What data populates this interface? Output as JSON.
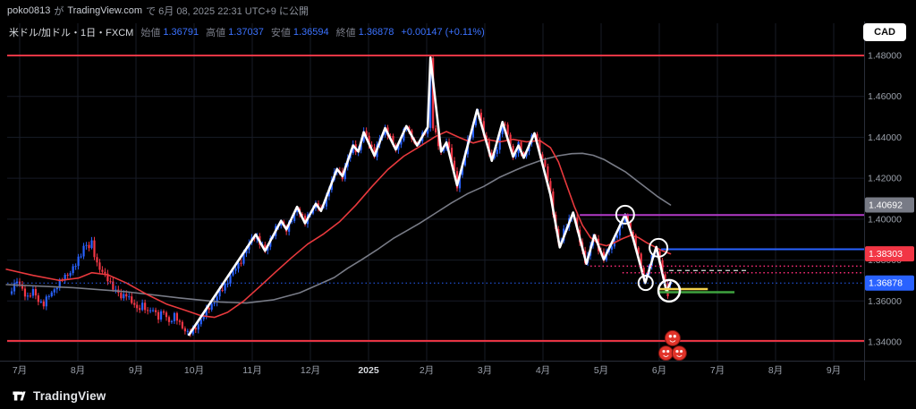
{
  "page": {
    "top_bar": {
      "user": "poko0813",
      "joiner": "が",
      "site": "TradingView.com",
      "rest": "で 6月 08, 2025 22:31 UTC+9 に公開"
    },
    "footer": {
      "logo_text": "TradingView"
    }
  },
  "chart": {
    "symbol_title": "米ドル/加ドル・1日・FXCM",
    "legend": {
      "open_label": "始値",
      "open_value": "1.36791",
      "high_label": "高値",
      "high_value": "1.37037",
      "low_label": "安値",
      "low_value": "1.36594",
      "close_label": "終値",
      "close_value": "1.36878",
      "change_value": "+0.00147 (+0.11%)"
    },
    "currency_button": "CAD",
    "colors": {
      "up": "#2962ff",
      "down": "#f23645",
      "ma_fast": "#e8393d",
      "ma_slow": "#787b86",
      "trend": "#ffffff",
      "grid": "#171b26",
      "axis_text": "#9aa0aa",
      "border": "#2a2e39"
    }
  },
  "chart_data": {
    "type": "candlestick",
    "title": "USD/CAD daily candlestick chart with moving averages and drawn levels",
    "symbol": "USD/CAD",
    "timeframe": "1D",
    "exchange": "FXCM",
    "x_axis": {
      "labels": [
        "7月",
        "8月",
        "9月",
        "10月",
        "11月",
        "12月",
        "2025",
        "2月",
        "3月",
        "4月",
        "5月",
        "6月",
        "7月",
        "8月",
        "9月"
      ]
    },
    "y_axis": {
      "ticks": [
        1.34,
        1.36,
        1.38,
        1.4,
        1.42,
        1.44,
        1.46,
        1.48
      ],
      "tick_labels": [
        "1.34000",
        "1.36000",
        "1.38000",
        "1.40000",
        "1.42000",
        "1.44000",
        "1.46000",
        "1.48000"
      ],
      "range": [
        1.331,
        1.487
      ]
    },
    "last_candle": {
      "open": 1.36791,
      "high": 1.37037,
      "low": 1.36594,
      "close": 1.36878
    },
    "close_path": [
      [
        -3,
        1.3665
      ],
      [
        -1,
        1.3695
      ],
      [
        1,
        1.3655
      ],
      [
        3,
        1.362
      ],
      [
        5,
        1.3645
      ],
      [
        7,
        1.3605
      ],
      [
        9,
        1.3585
      ],
      [
        11,
        1.3625
      ],
      [
        13,
        1.366
      ],
      [
        15,
        1.369
      ],
      [
        17,
        1.372
      ],
      [
        19,
        1.3745
      ],
      [
        21,
        1.3775
      ],
      [
        23,
        1.383
      ],
      [
        24.5,
        1.3895
      ],
      [
        25.5,
        1.385
      ],
      [
        27,
        1.388
      ],
      [
        28.5,
        1.38
      ],
      [
        30,
        1.376
      ],
      [
        32,
        1.372
      ],
      [
        34,
        1.369
      ],
      [
        36,
        1.365
      ],
      [
        38,
        1.3615
      ],
      [
        40,
        1.364
      ],
      [
        42,
        1.359
      ],
      [
        44,
        1.356
      ],
      [
        46,
        1.3585
      ],
      [
        48,
        1.354
      ],
      [
        50,
        1.3565
      ],
      [
        52,
        1.352
      ],
      [
        54,
        1.3545
      ],
      [
        56,
        1.35
      ],
      [
        58,
        1.3525
      ],
      [
        60,
        1.349
      ],
      [
        62,
        1.346
      ],
      [
        63.5,
        1.3435
      ],
      [
        65,
        1.3455
      ],
      [
        67,
        1.349
      ],
      [
        69,
        1.353
      ],
      [
        71,
        1.357
      ],
      [
        73,
        1.36
      ],
      [
        75,
        1.364
      ],
      [
        77,
        1.368
      ],
      [
        79,
        1.372
      ],
      [
        81,
        1.376
      ],
      [
        83,
        1.38
      ],
      [
        85,
        1.385
      ],
      [
        87,
        1.3905
      ],
      [
        88.5,
        1.3925
      ],
      [
        90,
        1.388
      ],
      [
        92,
        1.3845
      ],
      [
        94,
        1.3905
      ],
      [
        96,
        1.395
      ],
      [
        98,
        1.399
      ],
      [
        100,
        1.395
      ],
      [
        102,
        1.3995
      ],
      [
        104,
        1.406
      ],
      [
        105.5,
        1.402
      ],
      [
        107,
        1.398
      ],
      [
        109,
        1.404
      ],
      [
        111,
        1.4075
      ],
      [
        113,
        1.404
      ],
      [
        115,
        1.411
      ],
      [
        117,
        1.419
      ],
      [
        119,
        1.4245
      ],
      [
        121,
        1.421
      ],
      [
        123,
        1.429
      ],
      [
        125,
        1.436
      ],
      [
        127,
        1.433
      ],
      [
        129,
        1.4425
      ],
      [
        131,
        1.438
      ],
      [
        133,
        1.431
      ],
      [
        135,
        1.4395
      ],
      [
        137,
        1.4445
      ],
      [
        139,
        1.439
      ],
      [
        141,
        1.434
      ],
      [
        143,
        1.4395
      ],
      [
        145,
        1.4455
      ],
      [
        147,
        1.44
      ],
      [
        149,
        1.436
      ],
      [
        151,
        1.441
      ],
      [
        153,
        1.445
      ],
      [
        154,
        1.4785
      ],
      [
        155,
        1.4445
      ],
      [
        156.5,
        1.439
      ],
      [
        158,
        1.433
      ],
      [
        160,
        1.4375
      ],
      [
        162,
        1.4295
      ],
      [
        164,
        1.4165
      ],
      [
        166,
        1.4255
      ],
      [
        168,
        1.4385
      ],
      [
        170,
        1.445
      ],
      [
        171.5,
        1.4535
      ],
      [
        173,
        1.4475
      ],
      [
        175,
        1.4375
      ],
      [
        177,
        1.4285
      ],
      [
        179,
        1.435
      ],
      [
        181,
        1.4475
      ],
      [
        183,
        1.4415
      ],
      [
        185,
        1.4305
      ],
      [
        187,
        1.436
      ],
      [
        189,
        1.43
      ],
      [
        191,
        1.438
      ],
      [
        193,
        1.442
      ],
      [
        195,
        1.433
      ],
      [
        197,
        1.4255
      ],
      [
        199,
        1.412
      ],
      [
        201,
        1.395
      ],
      [
        202.5,
        1.3865
      ],
      [
        204,
        1.394
      ],
      [
        206,
        1.4
      ],
      [
        207.5,
        1.403
      ],
      [
        209,
        1.394
      ],
      [
        211,
        1.384
      ],
      [
        212.5,
        1.3785
      ],
      [
        214,
        1.387
      ],
      [
        215.5,
        1.392
      ],
      [
        217,
        1.386
      ],
      [
        219,
        1.3805
      ],
      [
        221,
        1.385
      ],
      [
        223,
        1.3905
      ],
      [
        225,
        1.3955
      ],
      [
        227,
        1.402
      ],
      [
        228.5,
        1.397
      ],
      [
        230,
        1.3905
      ],
      [
        232,
        1.3825
      ],
      [
        233.5,
        1.3745
      ],
      [
        234.5,
        1.369
      ],
      [
        236,
        1.3775
      ],
      [
        237.5,
        1.383
      ],
      [
        238.7,
        1.3862
      ],
      [
        240,
        1.3795
      ],
      [
        241.5,
        1.37
      ],
      [
        242.5,
        1.3648
      ],
      [
        243.2,
        1.3632
      ],
      [
        244,
        1.36878
      ]
    ],
    "white_line": [
      [
        63.5,
        1.3435
      ],
      [
        88.5,
        1.3925
      ],
      [
        92,
        1.3845
      ],
      [
        98,
        1.3992
      ],
      [
        100,
        1.395
      ],
      [
        104,
        1.406
      ],
      [
        107,
        1.398
      ],
      [
        111,
        1.4075
      ],
      [
        113,
        1.404
      ],
      [
        119,
        1.4245
      ],
      [
        121,
        1.421
      ],
      [
        125,
        1.436
      ],
      [
        127,
        1.433
      ],
      [
        129,
        1.4425
      ],
      [
        133,
        1.431
      ],
      [
        137,
        1.4445
      ],
      [
        141,
        1.434
      ],
      [
        145,
        1.4455
      ],
      [
        149,
        1.436
      ],
      [
        153,
        1.445
      ],
      [
        154,
        1.479
      ],
      [
        158,
        1.433
      ],
      [
        160,
        1.4375
      ],
      [
        164,
        1.4165
      ],
      [
        171.5,
        1.4535
      ],
      [
        177,
        1.4285
      ],
      [
        181,
        1.4475
      ],
      [
        185,
        1.4305
      ],
      [
        187,
        1.436
      ],
      [
        189,
        1.43
      ],
      [
        193,
        1.442
      ],
      [
        199,
        1.412
      ],
      [
        202.5,
        1.3862
      ],
      [
        207.5,
        1.4032
      ],
      [
        212.5,
        1.3782
      ],
      [
        215.5,
        1.3922
      ],
      [
        219,
        1.3802
      ],
      [
        227,
        1.4022
      ],
      [
        230,
        1.3905
      ],
      [
        234.5,
        1.3688
      ],
      [
        238.7,
        1.3864
      ],
      [
        242.5,
        1.3645
      ],
      [
        244,
        1.369
      ]
    ],
    "red_ma": [
      [
        -5,
        1.3755
      ],
      [
        5,
        1.3725
      ],
      [
        15,
        1.37
      ],
      [
        22,
        1.3712
      ],
      [
        27,
        1.3738
      ],
      [
        33,
        1.3728
      ],
      [
        40,
        1.3688
      ],
      [
        48,
        1.363
      ],
      [
        55,
        1.3585
      ],
      [
        62,
        1.3555
      ],
      [
        68,
        1.3528
      ],
      [
        73,
        1.352
      ],
      [
        78,
        1.3545
      ],
      [
        84,
        1.36
      ],
      [
        90,
        1.367
      ],
      [
        96,
        1.3742
      ],
      [
        102,
        1.3812
      ],
      [
        108,
        1.3878
      ],
      [
        114,
        1.3928
      ],
      [
        120,
        1.3988
      ],
      [
        126,
        1.4068
      ],
      [
        132,
        1.4158
      ],
      [
        138,
        1.4242
      ],
      [
        144,
        1.4308
      ],
      [
        150,
        1.4355
      ],
      [
        156,
        1.4405
      ],
      [
        160,
        1.4428
      ],
      [
        165,
        1.4398
      ],
      [
        170,
        1.4372
      ],
      [
        175,
        1.439
      ],
      [
        180,
        1.4378
      ],
      [
        185,
        1.439
      ],
      [
        190,
        1.4378
      ],
      [
        195,
        1.4385
      ],
      [
        199,
        1.435
      ],
      [
        202,
        1.428
      ],
      [
        205,
        1.417
      ],
      [
        208,
        1.406
      ],
      [
        211,
        1.397
      ],
      [
        214,
        1.391
      ],
      [
        217,
        1.388
      ],
      [
        220,
        1.387
      ],
      [
        223,
        1.3885
      ],
      [
        226,
        1.3905
      ],
      [
        229,
        1.392
      ],
      [
        232,
        1.391
      ],
      [
        235,
        1.3885
      ],
      [
        238,
        1.3865
      ],
      [
        241,
        1.3845
      ],
      [
        244,
        1.38303
      ]
    ],
    "gray_ma": [
      [
        -5,
        1.368
      ],
      [
        20,
        1.3665
      ],
      [
        40,
        1.3645
      ],
      [
        60,
        1.3615
      ],
      [
        75,
        1.3595
      ],
      [
        85,
        1.359
      ],
      [
        95,
        1.3605
      ],
      [
        105,
        1.364
      ],
      [
        112,
        1.368
      ],
      [
        118,
        1.3715
      ],
      [
        123,
        1.376
      ],
      [
        128,
        1.38
      ],
      [
        134,
        1.385
      ],
      [
        140,
        1.3905
      ],
      [
        146,
        1.395
      ],
      [
        150,
        1.398
      ],
      [
        156,
        1.403
      ],
      [
        162,
        1.408
      ],
      [
        168,
        1.4125
      ],
      [
        174,
        1.416
      ],
      [
        180,
        1.4205
      ],
      [
        186,
        1.424
      ],
      [
        190,
        1.4262
      ],
      [
        196,
        1.429
      ],
      [
        202,
        1.431
      ],
      [
        207,
        1.432
      ],
      [
        211,
        1.4322
      ],
      [
        215,
        1.4312
      ],
      [
        219,
        1.4292
      ],
      [
        223,
        1.4262
      ],
      [
        227,
        1.4232
      ],
      [
        231,
        1.4192
      ],
      [
        235,
        1.4152
      ],
      [
        239,
        1.4112
      ],
      [
        242,
        1.4086
      ],
      [
        244,
        1.40692
      ]
    ],
    "h_lines": [
      {
        "name": "red-resistance-line",
        "price": 1.48,
        "color": "#f23645",
        "style": "solid",
        "width": 2,
        "from_day": -5
      },
      {
        "name": "red-support-line",
        "price": 1.3405,
        "color": "#f23645",
        "style": "solid",
        "width": 2,
        "from_day": -5
      },
      {
        "name": "purple-level-line",
        "price": 1.402,
        "color": "#b23bc8",
        "style": "solid",
        "width": 2,
        "from_day": 210
      },
      {
        "name": "blue-level-line",
        "price": 1.3853,
        "color": "#2962ff",
        "style": "solid",
        "width": 2,
        "from_day": 240.5
      },
      {
        "name": "pink-dotted-upper",
        "price": 1.377,
        "color": "#ff2d78",
        "style": "dotted",
        "width": 1.5,
        "from_day": 214
      },
      {
        "name": "pink-dotted-lower",
        "price": 1.3738,
        "color": "#ff2d78",
        "style": "dotted",
        "width": 1.5,
        "from_day": 226
      },
      {
        "name": "white-dashed-segment",
        "price": 1.3749,
        "color": "#e0e0e0",
        "style": "dashed",
        "width": 1.2,
        "from_day": 243.5,
        "to_day": 273.5
      },
      {
        "name": "current-price-line",
        "price": 1.36878,
        "color": "#2962ff",
        "style": "dotted",
        "width": 1,
        "from_day": -5
      },
      {
        "name": "yellow-segment",
        "price": 1.3658,
        "color": "#f2d14b",
        "style": "solid",
        "width": 2.5,
        "from_day": 239.8,
        "to_day": 258
      },
      {
        "name": "green-segment",
        "price": 1.3643,
        "color": "#3fa33f",
        "style": "solid",
        "width": 2.5,
        "from_day": 239.8,
        "to_day": 268
      }
    ],
    "circles": [
      {
        "day": 227,
        "price": 1.4022,
        "r": 10,
        "w": 2
      },
      {
        "day": 239.5,
        "price": 1.386,
        "r": 10,
        "w": 2
      },
      {
        "day": 234.7,
        "price": 1.3688,
        "r": 8,
        "w": 2
      },
      {
        "day": 243.5,
        "price": 1.365,
        "r": 12,
        "w": 2.5
      }
    ],
    "stickers": [
      {
        "day": 244.8,
        "price": 1.3418,
        "r": 8.5
      },
      {
        "day": 242.3,
        "price": 1.3345,
        "r": 8
      },
      {
        "day": 247.3,
        "price": 1.3345,
        "r": 8
      }
    ],
    "price_labels": [
      {
        "value": "1.40692",
        "price": 1.40692,
        "bg": "#787b86"
      },
      {
        "value": "1.38303",
        "price": 1.38303,
        "bg": "#f23645"
      },
      {
        "value": "1.36878",
        "price": 1.36878,
        "bg": "#2962ff"
      }
    ]
  }
}
